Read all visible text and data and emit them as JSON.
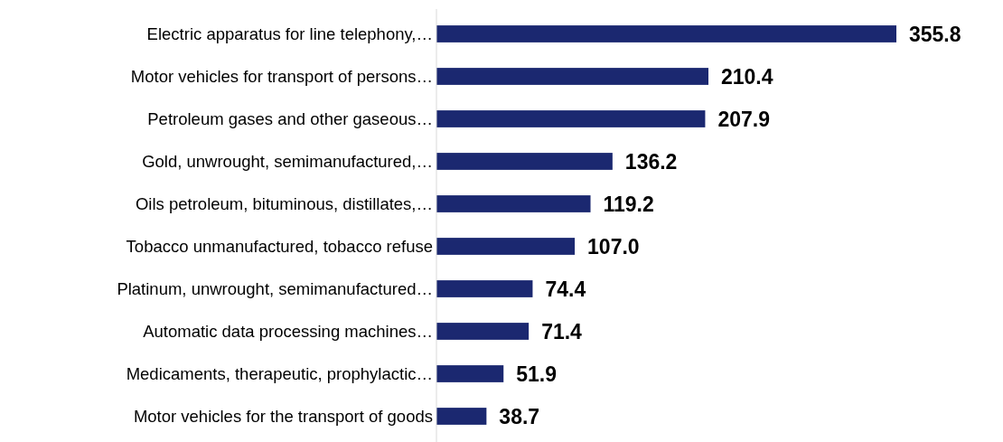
{
  "chart_data": {
    "type": "bar",
    "orientation": "horizontal",
    "categories": [
      "Electric apparatus for line telephony,…",
      "Motor vehicles for transport of persons…",
      "Petroleum gases and other gaseous…",
      "Gold, unwrought, semimanufactured,…",
      "Oils petroleum, bituminous, distillates,…",
      "Tobacco unmanufactured, tobacco refuse",
      "Platinum, unwrought, semimanufactured…",
      "Automatic data processing machines…",
      "Medicaments, therapeutic, prophylactic…",
      "Motor vehicles for the transport of goods"
    ],
    "values": [
      355.8,
      210.4,
      207.9,
      136.2,
      119.2,
      107.0,
      74.4,
      71.4,
      51.9,
      38.7
    ],
    "value_labels": [
      "355.8",
      "210.4",
      "207.9",
      "136.2",
      "119.2",
      "107.0",
      "74.4",
      "71.4",
      "51.9",
      "38.7"
    ],
    "color": "#1b2870"
  }
}
